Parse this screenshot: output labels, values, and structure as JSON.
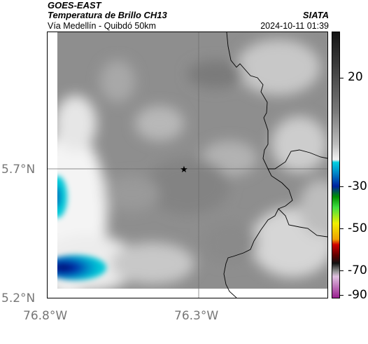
{
  "header": {
    "product": "GOES-EAST",
    "title": "Temperatura de Brillo CH13",
    "agency": "SIATA",
    "subtitle": "Vía Medellín - Quibdó 50km",
    "timestamp": "2024-10-11 01:39"
  },
  "axes": {
    "lat_labels": [
      "5.7°N",
      "5.2°N"
    ],
    "lon_labels": [
      "76.8°W",
      "76.3°W"
    ]
  },
  "map": {
    "marker_icon": "star-icon",
    "marker_glyph": "★",
    "gridlines": true,
    "boundary_color": "#000000"
  },
  "colorbar": {
    "ticks": [
      "20",
      "-30",
      "-50",
      "-70",
      "-90"
    ],
    "colors": {
      "warm_dark": "#1a1a1a",
      "mid_gray": "#8a8a8a",
      "light": "#f5f5f5",
      "cyan": "#00c8d8",
      "blue": "#0033aa",
      "green": "#00b000",
      "yellow": "#f0f000",
      "red": "#d00000",
      "black": "#111111",
      "magenta": "#b040a0"
    }
  }
}
